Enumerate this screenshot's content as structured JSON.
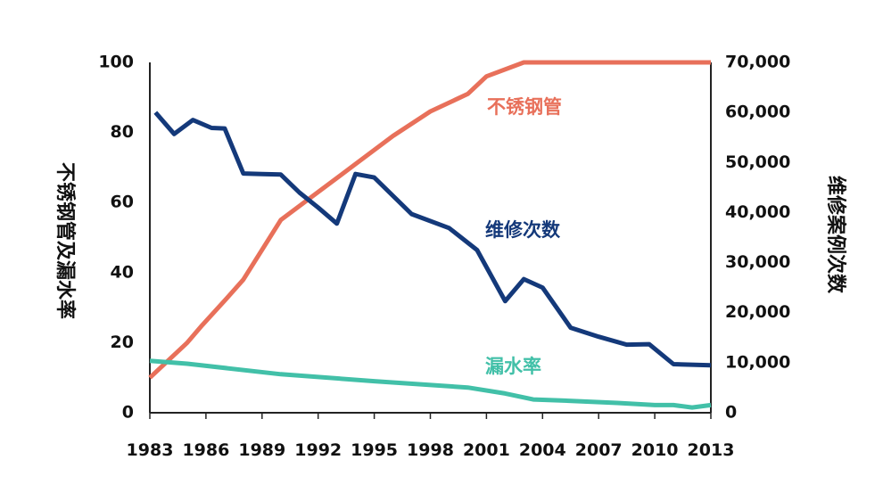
{
  "chart_data": {
    "type": "line",
    "title": "",
    "xlabel": "",
    "ylabel_left": "不锈钢管及漏水率",
    "ylabel_right": "维修案例次数",
    "xlim": [
      1983,
      2013
    ],
    "ylim_left": [
      0,
      100
    ],
    "ylim_right": [
      0,
      70000
    ],
    "x_ticks": [
      "1983",
      "1986",
      "1989",
      "1992",
      "1995",
      "1998",
      "2001",
      "2004",
      "2007",
      "2010",
      "2013"
    ],
    "y_ticks_left": [
      "0",
      "20",
      "40",
      "60",
      "80",
      "100"
    ],
    "y_ticks_right": [
      "0",
      "10,000",
      "20,000",
      "30,000",
      "40,000",
      "50,000",
      "60,000",
      "70,000"
    ],
    "series": [
      {
        "name": "不锈钢管",
        "axis": "left",
        "color": "#E8705A",
        "x": [
          1983,
          1985,
          1985.8,
          1987,
          1988,
          1990,
          1992,
          1994,
          1996,
          1998,
          2000,
          2001,
          2003,
          2005,
          2008,
          2013
        ],
        "values": [
          10,
          20,
          25,
          32,
          38,
          55,
          63,
          71,
          79,
          86,
          91,
          96,
          100,
          100,
          100,
          100
        ]
      },
      {
        "name": "维修次数",
        "axis": "right",
        "color": "#14397A",
        "x": [
          1983.3,
          1984.3,
          1985.3,
          1986.3,
          1987,
          1988,
          1989,
          1990,
          1991,
          1992,
          1993,
          1994,
          1995,
          1997,
          1999,
          2000.5,
          2002,
          2003,
          2004,
          2005.5,
          2007,
          2008.5,
          2009.7,
          2011,
          2013
        ],
        "values": [
          60000,
          55700,
          58500,
          56900,
          56800,
          47800,
          47700,
          47600,
          44000,
          41000,
          37800,
          47700,
          47000,
          39700,
          36900,
          32500,
          22300,
          26700,
          25000,
          17000,
          15200,
          13600,
          13700,
          9700,
          9500
        ]
      },
      {
        "name": "漏水率",
        "axis": "left",
        "color": "#42C0A8",
        "x": [
          1983,
          1985,
          1990,
          1995,
          2000,
          2002,
          2003.5,
          2005,
          2008,
          2010,
          2011,
          2012,
          2013
        ],
        "values": [
          14.8,
          14.0,
          11.0,
          9.0,
          7.2,
          5.5,
          3.8,
          3.5,
          2.8,
          2.2,
          2.2,
          1.5,
          2.2
        ]
      }
    ]
  }
}
